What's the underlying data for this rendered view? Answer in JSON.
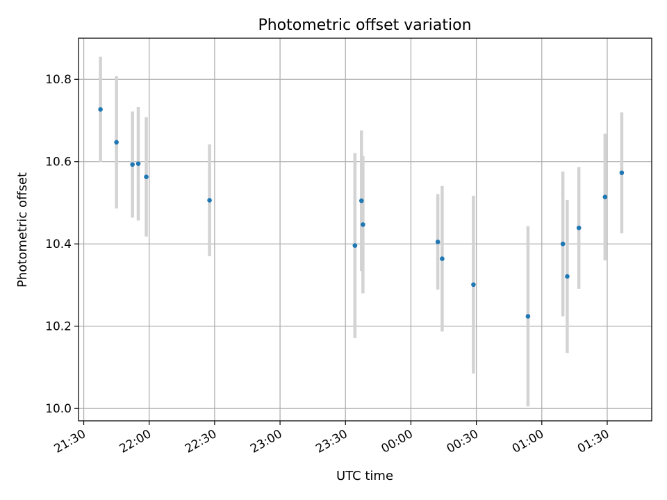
{
  "chart_data": {
    "type": "scatter",
    "title": "Photometric offset variation",
    "xlabel": "UTC time",
    "ylabel": "Photometric offset",
    "x_axis": "time",
    "x_range": [
      "2023-01-01T21:27:36",
      "2023-01-02T01:50:24"
    ],
    "x_tick_values": [
      "2023-01-01T21:30:00",
      "2023-01-01T22:00:00",
      "2023-01-01T22:30:00",
      "2023-01-01T23:00:00",
      "2023-01-01T23:30:00",
      "2023-01-02T00:00:00",
      "2023-01-02T00:30:00",
      "2023-01-02T01:00:00",
      "2023-01-02T01:30:00"
    ],
    "x_tick_labels": [
      "21:30",
      "22:00",
      "22:30",
      "23:00",
      "23:30",
      "00:00",
      "00:30",
      "01:00",
      "01:30"
    ],
    "ylim": [
      9.97,
      10.9
    ],
    "y_ticks": [
      10.0,
      10.2,
      10.4,
      10.6,
      10.8
    ],
    "y_tick_labels": [
      "10.0",
      "10.2",
      "10.4",
      "10.6",
      "10.8"
    ],
    "grid": true,
    "marker_color": "#1f77b4",
    "errorbar_color": "#d3d3d3",
    "points": [
      {
        "x": "2023-01-01T21:37:40",
        "y": 10.727,
        "err": 0.128
      },
      {
        "x": "2023-01-01T21:45:00",
        "y": 10.647,
        "err": 0.161
      },
      {
        "x": "2023-01-01T21:52:20",
        "y": 10.593,
        "err": 0.129
      },
      {
        "x": "2023-01-01T21:55:00",
        "y": 10.595,
        "err": 0.138
      },
      {
        "x": "2023-01-01T21:58:40",
        "y": 10.563,
        "err": 0.145
      },
      {
        "x": "2023-01-01T22:27:40",
        "y": 10.506,
        "err": 0.136
      },
      {
        "x": "2023-01-01T23:34:20",
        "y": 10.396,
        "err": 0.225
      },
      {
        "x": "2023-01-01T23:37:20",
        "y": 10.505,
        "err": 0.171
      },
      {
        "x": "2023-01-01T23:38:00",
        "y": 10.447,
        "err": 0.167
      },
      {
        "x": "2023-01-02T00:12:20",
        "y": 10.405,
        "err": 0.116
      },
      {
        "x": "2023-01-02T00:14:20",
        "y": 10.364,
        "err": 0.177
      },
      {
        "x": "2023-01-02T00:28:40",
        "y": 10.301,
        "err": 0.216
      },
      {
        "x": "2023-01-02T00:53:40",
        "y": 10.224,
        "err": 0.219
      },
      {
        "x": "2023-01-02T01:09:40",
        "y": 10.4,
        "err": 0.176
      },
      {
        "x": "2023-01-02T01:11:40",
        "y": 10.321,
        "err": 0.186
      },
      {
        "x": "2023-01-02T01:17:00",
        "y": 10.439,
        "err": 0.148
      },
      {
        "x": "2023-01-02T01:29:00",
        "y": 10.514,
        "err": 0.154
      },
      {
        "x": "2023-01-02T01:36:40",
        "y": 10.573,
        "err": 0.147
      }
    ]
  }
}
